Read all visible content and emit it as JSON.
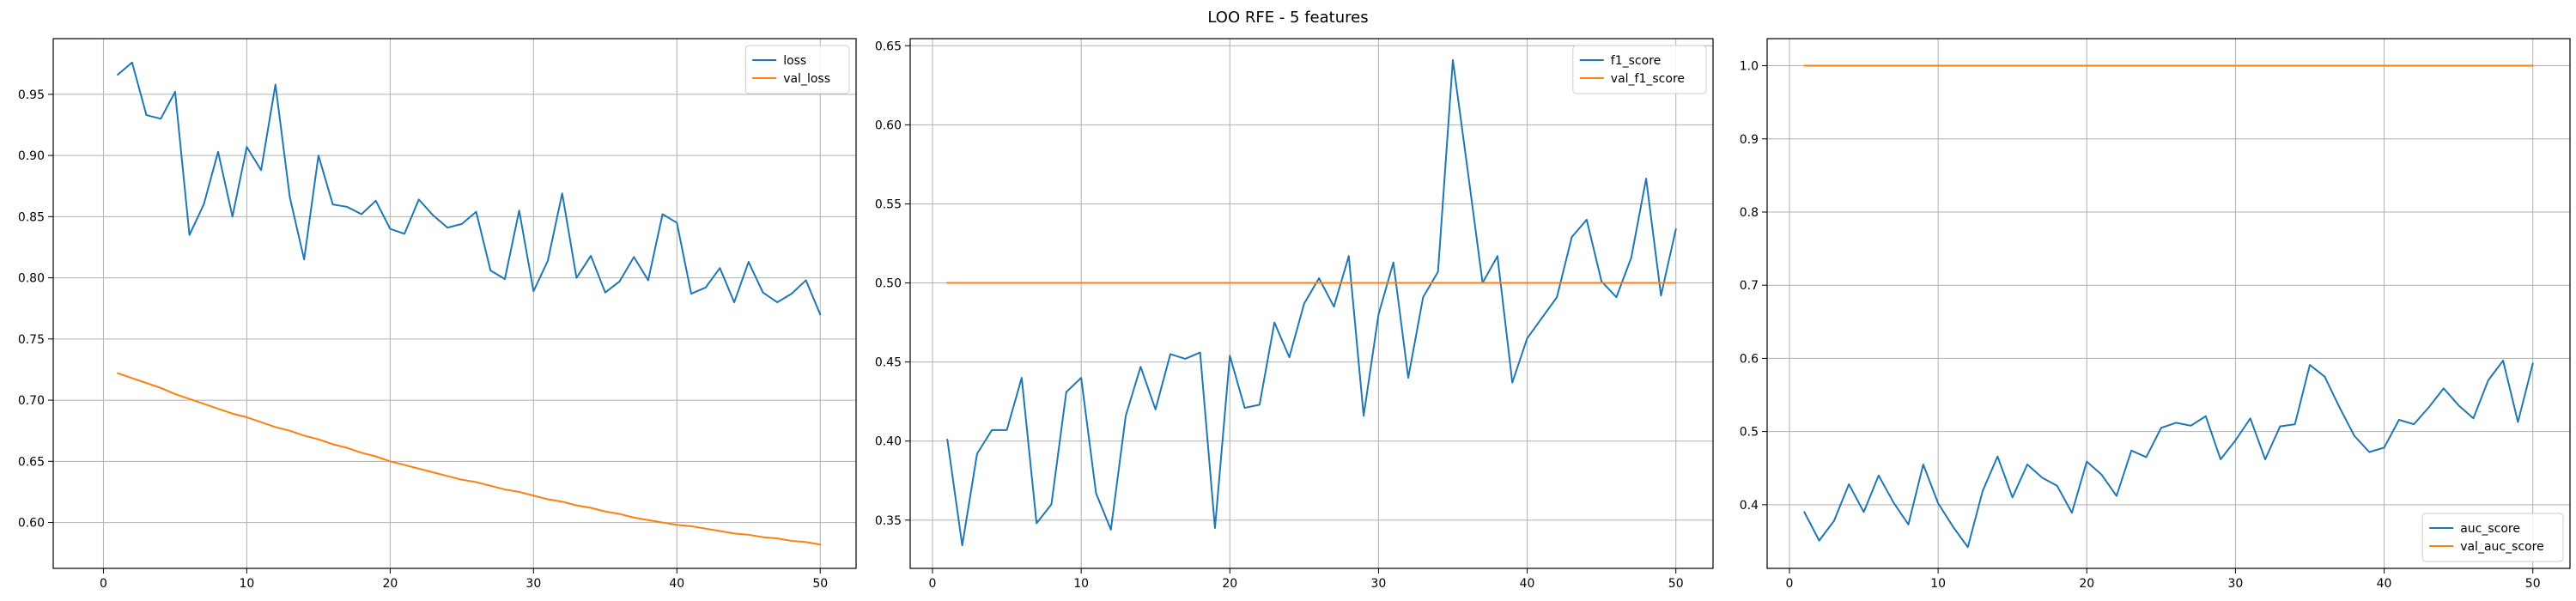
{
  "figure": {
    "title": "LOO RFE - 5 features"
  },
  "chart_data": [
    {
      "type": "line",
      "title": "",
      "xlabel": "",
      "ylabel": "",
      "grid": true,
      "legend_position": "top-right",
      "xlim": [
        -3.5,
        52.5
      ],
      "ylim": [
        0.5625,
        0.9955
      ],
      "xticks": [
        0,
        10,
        20,
        30,
        40,
        50
      ],
      "xtick_labels": [
        "0",
        "10",
        "20",
        "30",
        "40",
        "50"
      ],
      "yticks": [
        0.6,
        0.65,
        0.7,
        0.75,
        0.8,
        0.85,
        0.9,
        0.95
      ],
      "ytick_labels": [
        "0.60",
        "0.65",
        "0.70",
        "0.75",
        "0.80",
        "0.85",
        "0.90",
        "0.95"
      ],
      "x": [
        1,
        2,
        3,
        4,
        5,
        6,
        7,
        8,
        9,
        10,
        11,
        12,
        13,
        14,
        15,
        16,
        17,
        18,
        19,
        20,
        21,
        22,
        23,
        24,
        25,
        26,
        27,
        28,
        29,
        30,
        31,
        32,
        33,
        34,
        35,
        36,
        37,
        38,
        39,
        40,
        41,
        42,
        43,
        44,
        45,
        46,
        47,
        48,
        49,
        50
      ],
      "series": [
        {
          "name": "loss",
          "color": "#1f77b4",
          "values": [
            0.966,
            0.976,
            0.933,
            0.93,
            0.952,
            0.835,
            0.86,
            0.903,
            0.85,
            0.907,
            0.888,
            0.958,
            0.866,
            0.815,
            0.9,
            0.86,
            0.858,
            0.852,
            0.863,
            0.84,
            0.836,
            0.864,
            0.851,
            0.841,
            0.844,
            0.854,
            0.806,
            0.799,
            0.855,
            0.789,
            0.814,
            0.869,
            0.8,
            0.818,
            0.788,
            0.797,
            0.817,
            0.798,
            0.852,
            0.845,
            0.787,
            0.792,
            0.808,
            0.78,
            0.813,
            0.788,
            0.78,
            0.787,
            0.798,
            0.77
          ]
        },
        {
          "name": "val_loss",
          "color": "#ff7f0e",
          "values": [
            0.722,
            0.718,
            0.714,
            0.71,
            0.705,
            0.701,
            0.697,
            0.693,
            0.689,
            0.686,
            0.682,
            0.678,
            0.675,
            0.671,
            0.668,
            0.664,
            0.661,
            0.657,
            0.654,
            0.65,
            0.647,
            0.644,
            0.641,
            0.638,
            0.635,
            0.633,
            0.63,
            0.627,
            0.625,
            0.622,
            0.619,
            0.617,
            0.614,
            0.612,
            0.609,
            0.607,
            0.604,
            0.602,
            0.6,
            0.598,
            0.597,
            0.595,
            0.593,
            0.591,
            0.59,
            0.588,
            0.587,
            0.585,
            0.584,
            0.582
          ]
        }
      ]
    },
    {
      "type": "line",
      "title": "",
      "xlabel": "",
      "ylabel": "",
      "grid": true,
      "legend_position": "top-right",
      "xlim": [
        -1.5,
        52.5
      ],
      "ylim": [
        0.3195,
        0.6545
      ],
      "xticks": [
        0,
        10,
        20,
        30,
        40,
        50
      ],
      "xtick_labels": [
        "0",
        "10",
        "20",
        "30",
        "40",
        "50"
      ],
      "yticks": [
        0.35,
        0.4,
        0.45,
        0.5,
        0.55,
        0.6,
        0.65
      ],
      "ytick_labels": [
        "0.35",
        "0.40",
        "0.45",
        "0.50",
        "0.55",
        "0.60",
        "0.65"
      ],
      "x": [
        1,
        2,
        3,
        4,
        5,
        6,
        7,
        8,
        9,
        10,
        11,
        12,
        13,
        14,
        15,
        16,
        17,
        18,
        19,
        20,
        21,
        22,
        23,
        24,
        25,
        26,
        27,
        28,
        29,
        30,
        31,
        32,
        33,
        34,
        35,
        36,
        37,
        38,
        39,
        40,
        41,
        42,
        43,
        44,
        45,
        46,
        47,
        48,
        49,
        50
      ],
      "series": [
        {
          "name": "f1_score",
          "color": "#1f77b4",
          "values": [
            0.401,
            0.334,
            0.392,
            0.407,
            0.407,
            0.44,
            0.348,
            0.36,
            0.431,
            0.44,
            0.367,
            0.344,
            0.416,
            0.447,
            0.42,
            0.455,
            0.452,
            0.456,
            0.345,
            0.454,
            0.421,
            0.423,
            0.475,
            0.453,
            0.487,
            0.503,
            0.485,
            0.517,
            0.416,
            0.48,
            0.513,
            0.44,
            0.491,
            0.507,
            0.641,
            0.571,
            0.5,
            0.517,
            0.437,
            0.465,
            0.478,
            0.491,
            0.529,
            0.54,
            0.501,
            0.491,
            0.516,
            0.566,
            0.492,
            0.534
          ]
        },
        {
          "name": "val_f1_score",
          "color": "#ff7f0e",
          "values": [
            0.5,
            0.5,
            0.5,
            0.5,
            0.5,
            0.5,
            0.5,
            0.5,
            0.5,
            0.5,
            0.5,
            0.5,
            0.5,
            0.5,
            0.5,
            0.5,
            0.5,
            0.5,
            0.5,
            0.5,
            0.5,
            0.5,
            0.5,
            0.5,
            0.5,
            0.5,
            0.5,
            0.5,
            0.5,
            0.5,
            0.5,
            0.5,
            0.5,
            0.5,
            0.5,
            0.5,
            0.5,
            0.5,
            0.5,
            0.5,
            0.5,
            0.5,
            0.5,
            0.5,
            0.5,
            0.5,
            0.5,
            0.5,
            0.5,
            0.5
          ]
        }
      ]
    },
    {
      "type": "line",
      "title": "",
      "xlabel": "",
      "ylabel": "",
      "grid": true,
      "legend_position": "bottom-right",
      "xlim": [
        -1.5,
        52.5
      ],
      "ylim": [
        0.313,
        1.037
      ],
      "xticks": [
        0,
        10,
        20,
        30,
        40,
        50
      ],
      "xtick_labels": [
        "0",
        "10",
        "20",
        "30",
        "40",
        "50"
      ],
      "yticks": [
        0.4,
        0.5,
        0.6,
        0.7,
        0.8,
        0.9,
        1.0
      ],
      "ytick_labels": [
        "0.4",
        "0.5",
        "0.6",
        "0.7",
        "0.8",
        "0.9",
        "1.0"
      ],
      "x": [
        1,
        2,
        3,
        4,
        5,
        6,
        7,
        8,
        9,
        10,
        11,
        12,
        13,
        14,
        15,
        16,
        17,
        18,
        19,
        20,
        21,
        22,
        23,
        24,
        25,
        26,
        27,
        28,
        29,
        30,
        31,
        32,
        33,
        34,
        35,
        36,
        37,
        38,
        39,
        40,
        41,
        42,
        43,
        44,
        45,
        46,
        47,
        48,
        49,
        50
      ],
      "series": [
        {
          "name": "auc_score",
          "color": "#1f77b4",
          "values": [
            0.39,
            0.351,
            0.378,
            0.428,
            0.39,
            0.44,
            0.403,
            0.373,
            0.455,
            0.402,
            0.37,
            0.342,
            0.419,
            0.466,
            0.41,
            0.455,
            0.437,
            0.426,
            0.389,
            0.459,
            0.441,
            0.412,
            0.474,
            0.465,
            0.505,
            0.512,
            0.508,
            0.521,
            0.462,
            0.488,
            0.518,
            0.462,
            0.507,
            0.51,
            0.591,
            0.575,
            0.533,
            0.494,
            0.472,
            0.478,
            0.516,
            0.51,
            0.533,
            0.559,
            0.536,
            0.518,
            0.57,
            0.597,
            0.513,
            0.593
          ]
        },
        {
          "name": "val_auc_score",
          "color": "#ff7f0e",
          "values": [
            1.0,
            1.0,
            1.0,
            1.0,
            1.0,
            1.0,
            1.0,
            1.0,
            1.0,
            1.0,
            1.0,
            1.0,
            1.0,
            1.0,
            1.0,
            1.0,
            1.0,
            1.0,
            1.0,
            1.0,
            1.0,
            1.0,
            1.0,
            1.0,
            1.0,
            1.0,
            1.0,
            1.0,
            1.0,
            1.0,
            1.0,
            1.0,
            1.0,
            1.0,
            1.0,
            1.0,
            1.0,
            1.0,
            1.0,
            1.0,
            1.0,
            1.0,
            1.0,
            1.0,
            1.0,
            1.0,
            1.0,
            1.0,
            1.0,
            1.0
          ]
        }
      ]
    }
  ]
}
